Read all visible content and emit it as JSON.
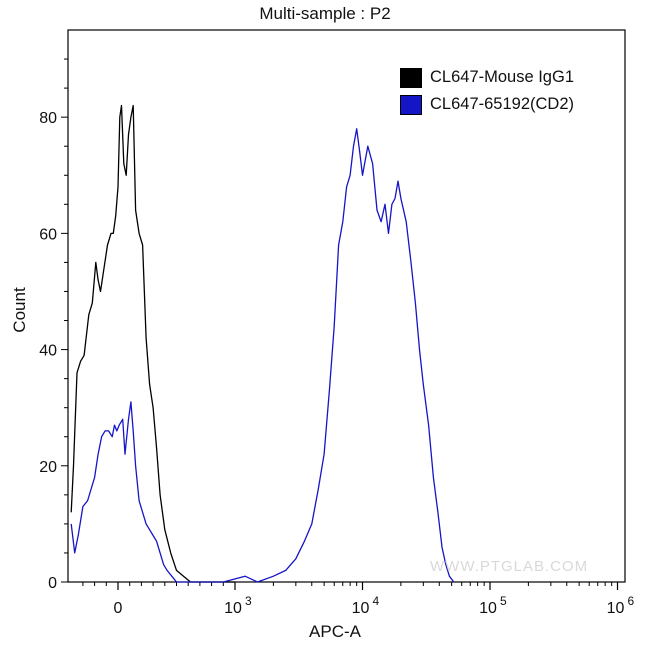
{
  "chart_data": {
    "type": "line",
    "title": "Multi-sample : P2",
    "xlabel": "APC-A",
    "ylabel": "Count",
    "x_scale": "biexponential",
    "ylim": [
      0,
      95
    ],
    "y_ticks": [
      0,
      20,
      40,
      60,
      80
    ],
    "x_ticks": [
      {
        "value": 0,
        "label": "0"
      },
      {
        "value": 1000,
        "label": "10",
        "exp": "3"
      },
      {
        "value": 10000,
        "label": "10",
        "exp": "4"
      },
      {
        "value": 100000,
        "label": "10",
        "exp": "5"
      },
      {
        "value": 1000000,
        "label": "10",
        "exp": "6"
      }
    ],
    "legend_position": "top-right",
    "grid": false,
    "series": [
      {
        "name": "CL647-Mouse IgG1",
        "color": "#000000",
        "points": [
          [
            -400,
            12
          ],
          [
            -380,
            20
          ],
          [
            -350,
            36
          ],
          [
            -320,
            38
          ],
          [
            -290,
            39
          ],
          [
            -250,
            46
          ],
          [
            -220,
            48
          ],
          [
            -190,
            55
          ],
          [
            -170,
            52
          ],
          [
            -150,
            50
          ],
          [
            -120,
            54
          ],
          [
            -90,
            58
          ],
          [
            -60,
            60
          ],
          [
            -40,
            60
          ],
          [
            -20,
            63
          ],
          [
            0,
            68
          ],
          [
            15,
            80
          ],
          [
            30,
            82
          ],
          [
            50,
            72
          ],
          [
            70,
            70
          ],
          [
            90,
            77
          ],
          [
            110,
            80
          ],
          [
            130,
            82
          ],
          [
            150,
            64
          ],
          [
            180,
            60
          ],
          [
            210,
            58
          ],
          [
            240,
            42
          ],
          [
            270,
            34
          ],
          [
            300,
            30
          ],
          [
            330,
            23
          ],
          [
            360,
            15
          ],
          [
            400,
            9
          ],
          [
            450,
            5
          ],
          [
            500,
            2
          ],
          [
            560,
            1
          ],
          [
            620,
            0
          ],
          [
            700,
            0
          ],
          [
            850,
            0
          ],
          [
            1000,
            0
          ]
        ]
      },
      {
        "name": "CL647-65192(CD2)",
        "color": "#1515c8",
        "points": [
          [
            -400,
            10
          ],
          [
            -370,
            5
          ],
          [
            -340,
            8
          ],
          [
            -300,
            13
          ],
          [
            -260,
            14
          ],
          [
            -230,
            16
          ],
          [
            -200,
            18
          ],
          [
            -170,
            22
          ],
          [
            -140,
            25
          ],
          [
            -110,
            26
          ],
          [
            -80,
            26
          ],
          [
            -50,
            25
          ],
          [
            -30,
            27
          ],
          [
            -10,
            26
          ],
          [
            10,
            27
          ],
          [
            40,
            28
          ],
          [
            60,
            22
          ],
          [
            90,
            28
          ],
          [
            110,
            31
          ],
          [
            130,
            26
          ],
          [
            150,
            20
          ],
          [
            180,
            14
          ],
          [
            210,
            12
          ],
          [
            240,
            10
          ],
          [
            270,
            9
          ],
          [
            300,
            8
          ],
          [
            330,
            7
          ],
          [
            360,
            5
          ],
          [
            390,
            3
          ],
          [
            420,
            2
          ],
          [
            460,
            1
          ],
          [
            500,
            0
          ],
          [
            700,
            0
          ],
          [
            900,
            0
          ],
          [
            1200,
            1
          ],
          [
            1500,
            0
          ],
          [
            2000,
            1
          ],
          [
            2500,
            2
          ],
          [
            3000,
            4
          ],
          [
            3500,
            7
          ],
          [
            4000,
            10
          ],
          [
            4500,
            16
          ],
          [
            5000,
            22
          ],
          [
            5500,
            33
          ],
          [
            6000,
            44
          ],
          [
            6500,
            58
          ],
          [
            7000,
            62
          ],
          [
            7500,
            68
          ],
          [
            8000,
            70
          ],
          [
            8500,
            75
          ],
          [
            9000,
            78
          ],
          [
            9500,
            74
          ],
          [
            10000,
            70
          ],
          [
            11000,
            75
          ],
          [
            12000,
            72
          ],
          [
            13000,
            64
          ],
          [
            14000,
            62
          ],
          [
            15000,
            65
          ],
          [
            16000,
            60
          ],
          [
            17000,
            65
          ],
          [
            18000,
            66
          ],
          [
            19000,
            69
          ],
          [
            20000,
            66
          ],
          [
            22000,
            62
          ],
          [
            24000,
            55
          ],
          [
            26000,
            48
          ],
          [
            28000,
            40
          ],
          [
            30000,
            34
          ],
          [
            33000,
            27
          ],
          [
            36000,
            18
          ],
          [
            39000,
            12
          ],
          [
            42000,
            6
          ],
          [
            45000,
            3
          ],
          [
            48000,
            1
          ],
          [
            52000,
            0
          ]
        ]
      }
    ]
  },
  "watermark": "WWW.PTGLAB.COM"
}
